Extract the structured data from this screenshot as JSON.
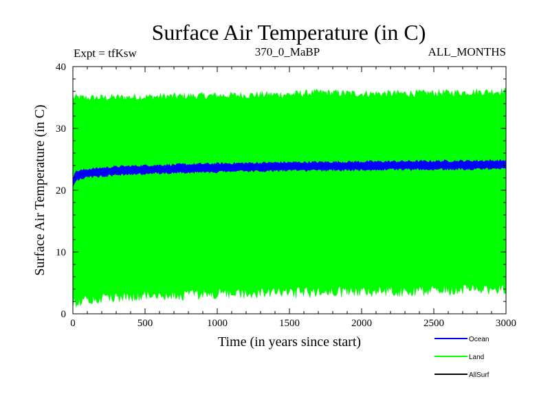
{
  "chart_data": {
    "type": "area",
    "title": "Surface Air Temperature (in C)",
    "subtitle_left": "Expt = tfKsw",
    "subtitle_center": "370_0_MaBP",
    "subtitle_right": "ALL_MONTHS",
    "xlabel": "Time (in years since start)",
    "ylabel": "Surface Air Temperature (in C)",
    "xlim": [
      0,
      3000
    ],
    "ylim": [
      0,
      40
    ],
    "xticks": [
      0,
      500,
      1000,
      1500,
      2000,
      2500,
      3000
    ],
    "yticks": [
      0,
      10,
      20,
      30,
      40
    ],
    "xtick_labels": [
      "0",
      "500",
      "1000",
      "1500",
      "2000",
      "2500",
      "3000"
    ],
    "ytick_labels": [
      "0",
      "10",
      "20",
      "30",
      "40"
    ],
    "legend_position": "bottom-right",
    "series": [
      {
        "name": "Land",
        "color": "#00ff00",
        "band": {
          "x": [
            0,
            20,
            100,
            500,
            1000,
            1500,
            1700,
            2000,
            2500,
            3000
          ],
          "upper": [
            35.0,
            35.0,
            34.9,
            35.1,
            35.3,
            35.5,
            35.8,
            35.6,
            35.7,
            36.0
          ],
          "lower": [
            1.5,
            1.8,
            2.5,
            3.0,
            3.2,
            3.4,
            3.5,
            3.6,
            3.8,
            4.0
          ]
        }
      },
      {
        "name": "Ocean",
        "color": "#0000ff",
        "band": {
          "x": [
            0,
            10,
            30,
            60,
            100,
            200,
            300,
            500,
            1000,
            1500,
            2000,
            2500,
            3000
          ],
          "upper": [
            21.8,
            22.8,
            23.1,
            23.2,
            23.4,
            23.6,
            23.8,
            24.0,
            24.3,
            24.5,
            24.6,
            24.7,
            24.8
          ],
          "lower": [
            20.5,
            21.2,
            21.6,
            21.9,
            22.1,
            22.3,
            22.5,
            22.7,
            23.0,
            23.2,
            23.3,
            23.4,
            23.5
          ]
        }
      },
      {
        "name": "AllSurf",
        "color": "#000000",
        "band": null
      }
    ]
  }
}
